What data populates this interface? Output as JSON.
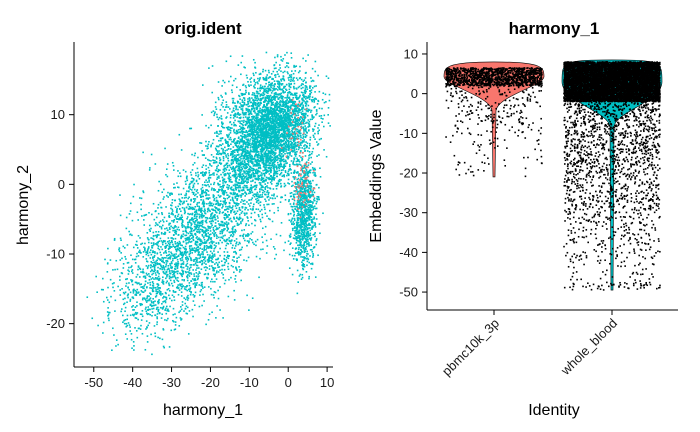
{
  "chart_data": [
    {
      "type": "scatter",
      "title": "orig.ident",
      "xlabel": "harmony_1",
      "ylabel": "harmony_2",
      "xlim": [
        -52,
        11
      ],
      "ylim": [
        -24.5,
        19
      ],
      "xticks": [
        -50,
        -40,
        -30,
        -20,
        -10,
        0,
        10
      ],
      "yticks": [
        -20,
        -10,
        0,
        10
      ],
      "legend": "none",
      "series": [
        {
          "color": "#00BFC4",
          "approx_count": 9000,
          "clusters": [
            {
              "center": [
                -3,
                8
              ],
              "spread": [
                5,
                3.5
              ],
              "count": 2600
            },
            {
              "center": [
                -10,
                6
              ],
              "spread": [
                5,
                5
              ],
              "count": 1400
            },
            {
              "center": [
                -22,
                -6
              ],
              "spread": [
                9,
                5
              ],
              "count": 1900
            },
            {
              "center": [
                -33,
                -14
              ],
              "spread": [
                7,
                4
              ],
              "count": 700
            },
            {
              "center": [
                4,
                -4
              ],
              "spread": [
                1.5,
                4
              ],
              "count": 900
            }
          ]
        },
        {
          "color": "#F8766D",
          "approx_count": 90,
          "clusters": [
            {
              "center": [
                4,
                0
              ],
              "spread": [
                1.2,
                2
              ],
              "count": 60
            },
            {
              "center": [
                2,
                8
              ],
              "spread": [
                1.5,
                2
              ],
              "count": 30
            }
          ]
        }
      ]
    },
    {
      "type": "violin",
      "title": "harmony_1",
      "xlabel": "Identity",
      "ylabel": "Embeddings Value",
      "ylim": [
        -52,
        11
      ],
      "yticks": [
        -50,
        -40,
        -30,
        -20,
        -10,
        0,
        10
      ],
      "categories": [
        "pbmc10k_3p",
        "whole_blood"
      ],
      "series": [
        {
          "name": "pbmc10k_3p",
          "color": "#F8766D",
          "value_range": [
            -21,
            8
          ],
          "bulk_range": [
            2,
            6.5
          ],
          "median": 4.5,
          "approx_points": 1500
        },
        {
          "name": "whole_blood",
          "color": "#00BFC4",
          "value_range": [
            -49.5,
            8.5
          ],
          "bulk_range": [
            -2,
            8
          ],
          "median": 4.5,
          "approx_points": 9000
        }
      ]
    }
  ]
}
